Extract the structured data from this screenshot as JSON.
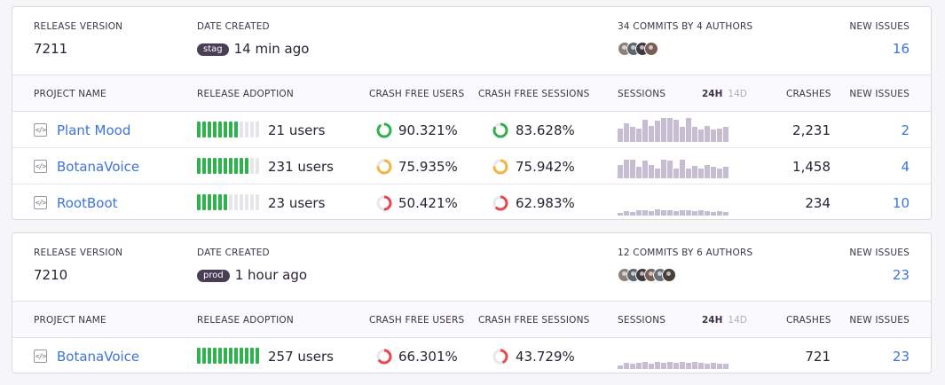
{
  "labels": {
    "release_version": "Release Version",
    "date_created": "Date Created",
    "new_issues": "New Issues",
    "project_name": "Project Name",
    "release_adoption": "Release Adoption",
    "crash_free_users": "Crash Free Users",
    "crash_free_sessions": "Crash Free Sessions",
    "sessions": "Sessions",
    "period_24h": "24h",
    "period_14d": "14d",
    "crashes": "Crashes"
  },
  "colors": {
    "adoption_green": "#2fb24d",
    "ring_green": "#2fb24d",
    "ring_yellow": "#f5b53c",
    "ring_red": "#e9474a",
    "link": "#3d74db",
    "sparkline": "#c7bdd2"
  },
  "icons": {
    "project": "code-file-icon"
  },
  "releases": [
    {
      "version": "7211",
      "env_badge": "stag",
      "date_created": "14 min ago",
      "commits_label": "34 Commits by 4 Authors",
      "author_colors": [
        "#8e7f7a",
        "#5c6670",
        "#3f3a3d",
        "#7a5e57"
      ],
      "new_issues": "16",
      "projects": [
        {
          "name": "Plant Mood",
          "adoption_filled": 8,
          "adoption_total": 12,
          "users": "21 users",
          "crash_free_users": "90.321%",
          "crash_free_users_pct": 90.321,
          "crash_free_users_color": "#2fb24d",
          "crash_free_sessions": "83.628%",
          "crash_free_sessions_pct": 83.628,
          "crash_free_sessions_color": "#2fb24d",
          "sessions": [
            0.55,
            0.75,
            0.6,
            0.55,
            0.9,
            0.65,
            0.85,
            0.95,
            0.95,
            0.9,
            0.6,
            0.95,
            0.6,
            0.5,
            0.65,
            0.5,
            0.55,
            0.6
          ],
          "crashes": "2,231",
          "new_issues": "2"
        },
        {
          "name": "BotanaVoice",
          "adoption_filled": 10,
          "adoption_total": 12,
          "users": "231 users",
          "crash_free_users": "75.935%",
          "crash_free_users_pct": 75.935,
          "crash_free_users_color": "#f5b53c",
          "crash_free_sessions": "75.942%",
          "crash_free_sessions_pct": 75.942,
          "crash_free_sessions_color": "#f5b53c",
          "sessions": [
            0.55,
            0.75,
            0.75,
            0.45,
            0.7,
            0.55,
            0.4,
            0.75,
            0.7,
            0.4,
            0.75,
            0.4,
            0.5,
            0.4,
            0.55,
            0.45,
            0.4,
            0.45
          ],
          "crashes": "1,458",
          "new_issues": "4"
        },
        {
          "name": "RootBoot",
          "adoption_filled": 6,
          "adoption_total": 12,
          "users": "23 users",
          "crash_free_users": "50.421%",
          "crash_free_users_pct": 50.421,
          "crash_free_users_color": "#e9474a",
          "crash_free_sessions": "62.983%",
          "crash_free_sessions_pct": 62.983,
          "crash_free_sessions_color": "#e9474a",
          "sessions": [
            0.1,
            0.18,
            0.15,
            0.2,
            0.22,
            0.18,
            0.25,
            0.2,
            0.22,
            0.18,
            0.22,
            0.2,
            0.18,
            0.22,
            0.18,
            0.15,
            0.18,
            0.15
          ],
          "crashes": "234",
          "new_issues": "10"
        }
      ]
    },
    {
      "version": "7210",
      "env_badge": "prod",
      "date_created": "1 hour ago",
      "commits_label": "12 Commits by 6 Authors",
      "author_colors": [
        "#8e7f7a",
        "#5c6670",
        "#3f3a3d",
        "#7a5e57",
        "#6b6f78",
        "#4a3e3c"
      ],
      "new_issues": "23",
      "projects": [
        {
          "name": "BotanaVoice",
          "adoption_filled": 12,
          "adoption_total": 12,
          "users": "257 users",
          "crash_free_users": "66.301%",
          "crash_free_users_pct": 66.301,
          "crash_free_users_color": "#e9474a",
          "crash_free_sessions": "43.729%",
          "crash_free_sessions_pct": 43.729,
          "crash_free_sessions_color": "#e9474a",
          "sessions": [
            0.15,
            0.25,
            0.2,
            0.25,
            0.28,
            0.22,
            0.3,
            0.25,
            0.3,
            0.25,
            0.3,
            0.25,
            0.28,
            0.25,
            0.22,
            0.25,
            0.22,
            0.2
          ],
          "crashes": "721",
          "new_issues": "23"
        }
      ]
    }
  ]
}
